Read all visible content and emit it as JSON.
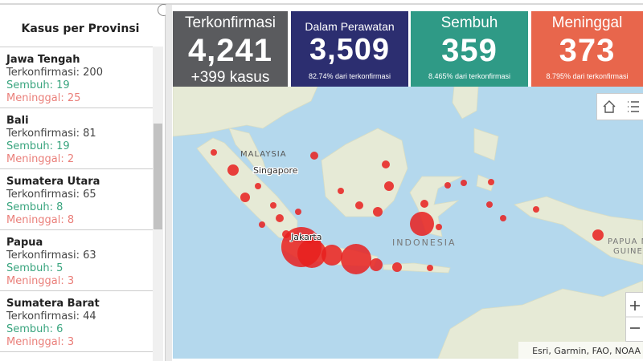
{
  "sidebar": {
    "title": "Kasus per Provinsi",
    "items": [
      {
        "name": "Jawa Tengah",
        "confirmed": "Terkonfirmasi: 200",
        "recovered": "Sembuh: 19",
        "deaths": "Meninggal: 25"
      },
      {
        "name": "Bali",
        "confirmed": "Terkonfirmasi: 81",
        "recovered": "Sembuh: 19",
        "deaths": "Meninggal: 2"
      },
      {
        "name": "Sumatera Utara",
        "confirmed": "Terkonfirmasi: 65",
        "recovered": "Sembuh: 8",
        "deaths": "Meninggal: 8"
      },
      {
        "name": "Papua",
        "confirmed": "Terkonfirmasi: 63",
        "recovered": "Sembuh: 5",
        "deaths": "Meninggal: 3"
      },
      {
        "name": "Sumatera Barat",
        "confirmed": "Terkonfirmasi: 44",
        "recovered": "Sembuh: 6",
        "deaths": "Meninggal: 3"
      }
    ]
  },
  "stats": [
    {
      "title": "Terkonfirmasi",
      "value": "4,241",
      "note": "+399 kasus",
      "color": "#5a5b5e"
    },
    {
      "title": "Dalam Perawatan",
      "value": "3,509",
      "note": "82.74% dari terkonfirmasi",
      "color": "#2c2e70"
    },
    {
      "title": "Sembuh",
      "value": "359",
      "note": "8.465% dari terkonfirmasi",
      "color": "#2f9a86"
    },
    {
      "title": "Meninggal",
      "value": "373",
      "note": "8.795% dari terkonfirmasi",
      "color": "#e8664c"
    }
  ],
  "map": {
    "labels": {
      "malaysia": "MALAYSIA",
      "singapore": "Singapore",
      "jakarta": "Jakarta",
      "indonesia": "INDONESIA",
      "png_line1": "PAPUA NEW",
      "png_line2": "GUINEA"
    },
    "attribution": "Esri, Garmin, FAO, NOAA"
  }
}
